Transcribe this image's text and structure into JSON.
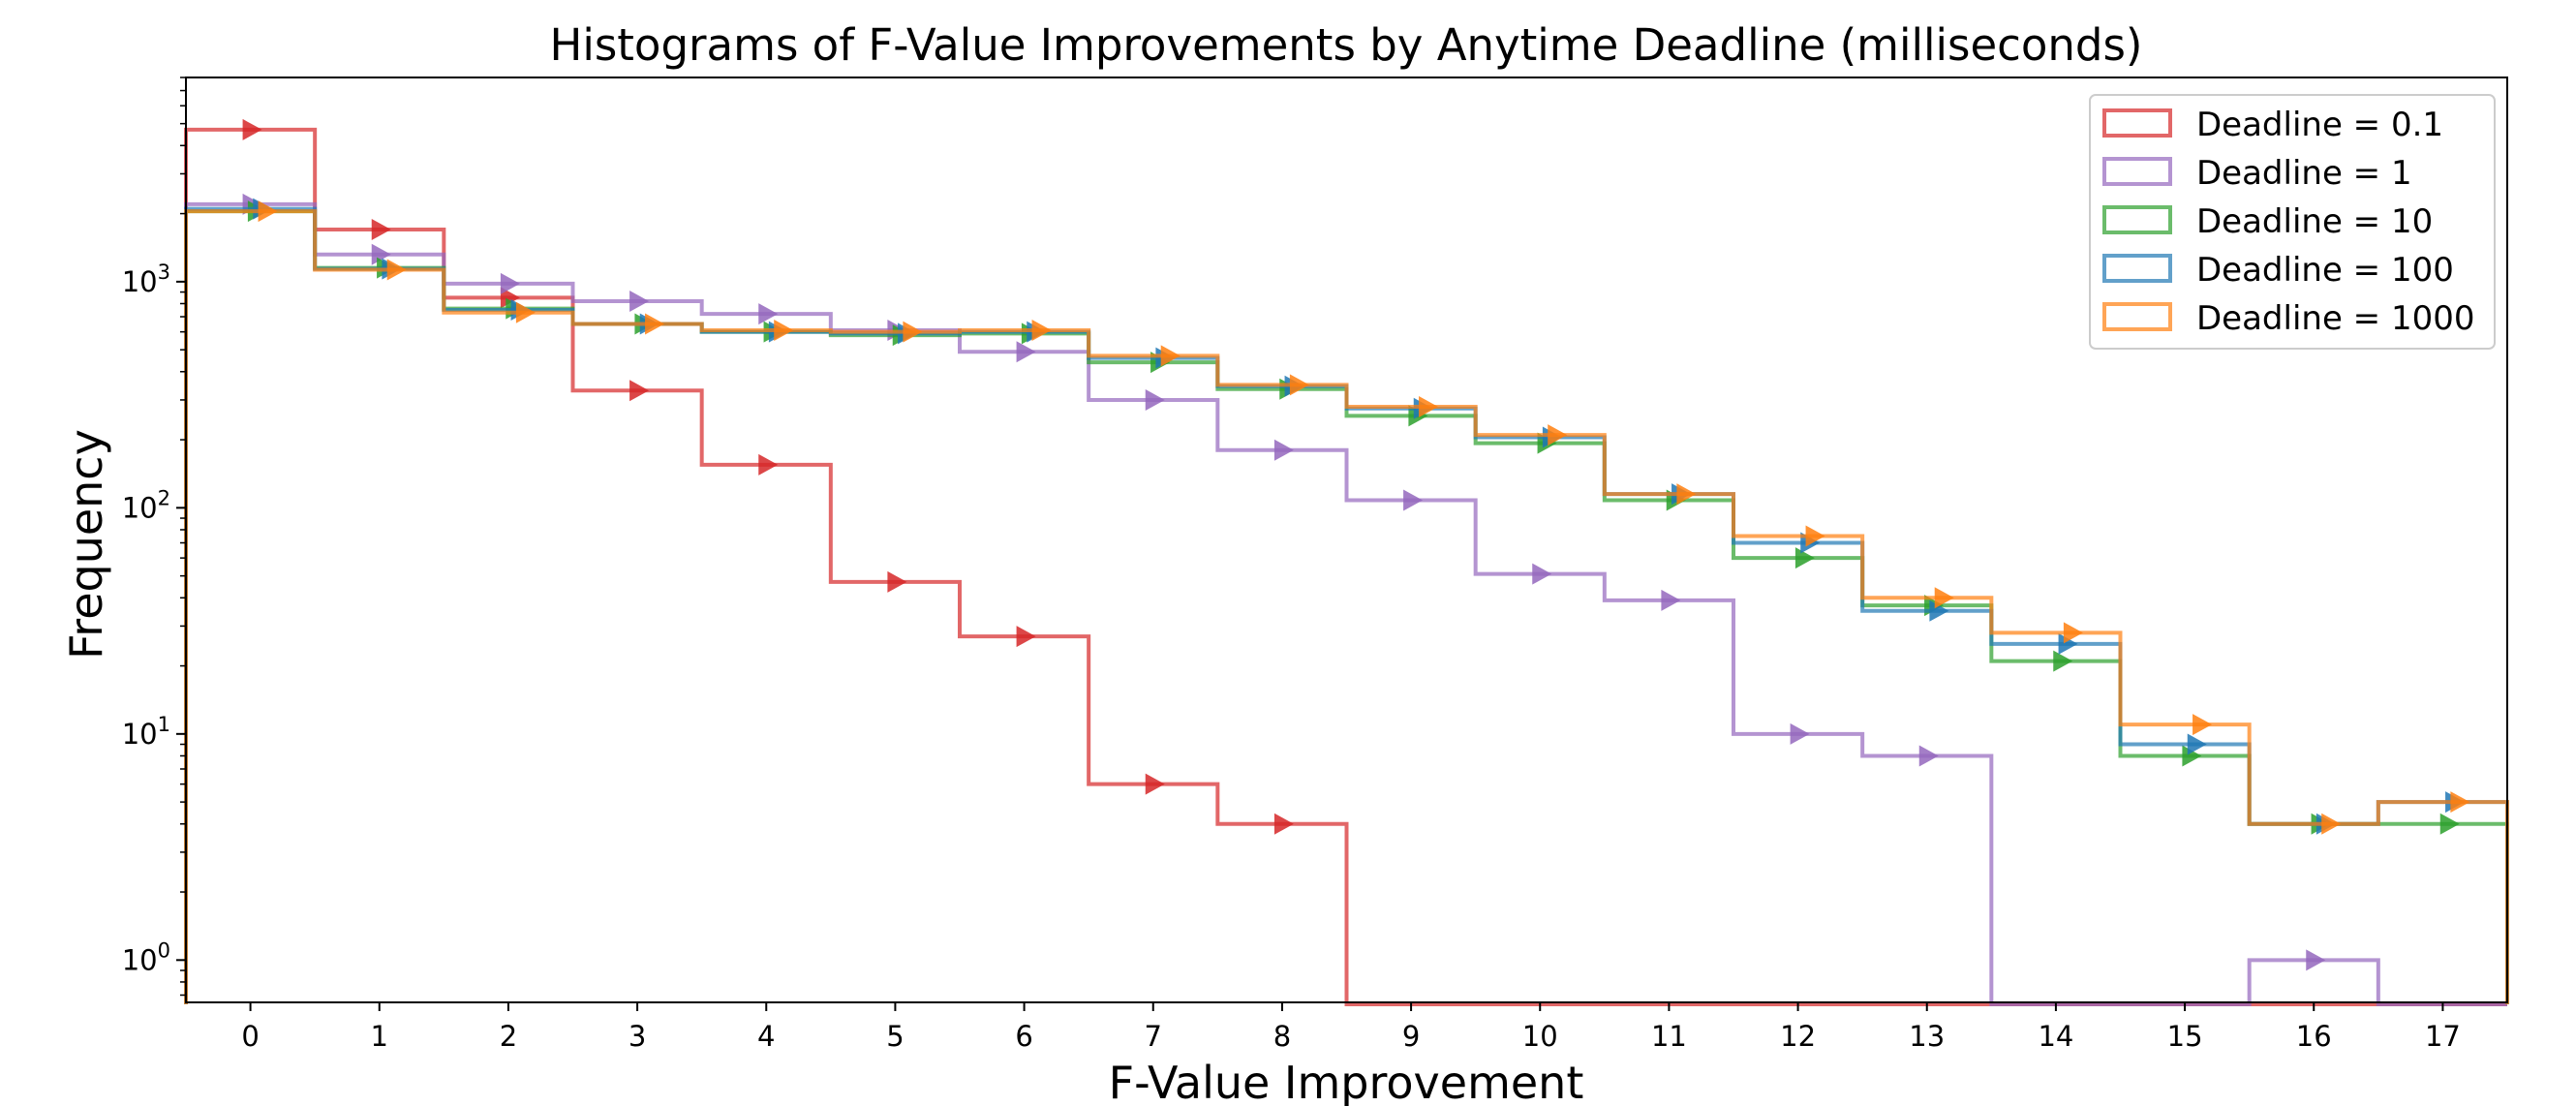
{
  "chart_data": {
    "type": "histogram-step",
    "title": "Histograms of F-Value Improvements by Anytime Deadline (milliseconds)",
    "xlabel": "F-Value Improvement",
    "ylabel": "Frequency",
    "yscale": "log",
    "xlim": [
      -0.5,
      17.5
    ],
    "ylim": [
      0.65,
      8000
    ],
    "x_ticks": [
      0,
      1,
      2,
      3,
      4,
      5,
      6,
      7,
      8,
      9,
      10,
      11,
      12,
      13,
      14,
      15,
      16,
      17
    ],
    "y_ticks": [
      {
        "value": 1,
        "base": "10",
        "exp": "0"
      },
      {
        "value": 10,
        "base": "10",
        "exp": "1"
      },
      {
        "value": 100,
        "base": "10",
        "exp": "2"
      },
      {
        "value": 1000,
        "base": "10",
        "exp": "3"
      }
    ],
    "bins": [
      0,
      1,
      2,
      3,
      4,
      5,
      6,
      7,
      8,
      9,
      10,
      11,
      12,
      13,
      14,
      15,
      16,
      17
    ],
    "legend_position": "upper right",
    "grid": false,
    "series": [
      {
        "name": "Deadline = 0.1",
        "color": "#d62728",
        "values": [
          4700,
          1700,
          850,
          330,
          155,
          47,
          27,
          6,
          4,
          0,
          0,
          0,
          0,
          0,
          0,
          0,
          0,
          0
        ]
      },
      {
        "name": "Deadline = 1",
        "color": "#9467bd",
        "values": [
          2200,
          1320,
          980,
          820,
          720,
          610,
          490,
          300,
          180,
          108,
          51,
          39,
          10,
          8,
          0,
          0,
          1,
          0
        ]
      },
      {
        "name": "Deadline = 10",
        "color": "#2ca02c",
        "values": [
          2050,
          1150,
          760,
          650,
          600,
          580,
          590,
          440,
          335,
          255,
          193,
          108,
          60,
          37,
          21,
          8,
          4,
          4
        ]
      },
      {
        "name": "Deadline = 100",
        "color": "#1f77b4",
        "values": [
          2100,
          1140,
          750,
          650,
          600,
          590,
          600,
          460,
          345,
          275,
          205,
          115,
          70,
          35,
          25,
          9,
          4,
          5
        ]
      },
      {
        "name": "Deadline = 1000",
        "color": "#ff7f0e",
        "values": [
          2050,
          1130,
          730,
          650,
          610,
          600,
          610,
          470,
          350,
          280,
          210,
          115,
          75,
          40,
          28,
          11,
          4,
          5
        ]
      }
    ]
  }
}
